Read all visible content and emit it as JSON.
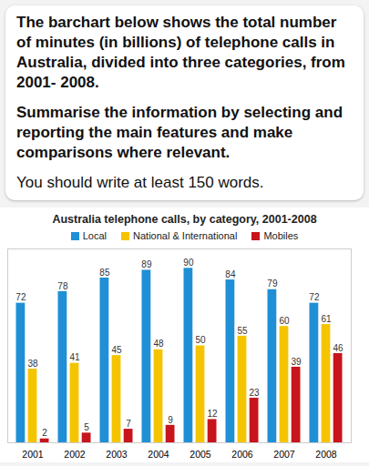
{
  "header": {
    "paragraphs": [
      "The barchart below shows the total number of minutes (in billions) of telephone calls in Australia, divided into three categories, from 2001- 2008.",
      "Summarise the information by selecting and reporting the main features and make comparisons where relevant.",
      "You should write at least 150 words."
    ]
  },
  "chart_data": {
    "type": "bar",
    "title": "Australia telephone calls, by category, 2001-2008",
    "categories": [
      "2001",
      "2002",
      "2003",
      "2004",
      "2005",
      "2006",
      "2007",
      "2008"
    ],
    "series": [
      {
        "name": "Local",
        "color": "#1f8fd6",
        "values": [
          72,
          78,
          85,
          89,
          90,
          84,
          79,
          72
        ]
      },
      {
        "name": "National & International",
        "color": "#f5c400",
        "values": [
          38,
          41,
          45,
          48,
          50,
          55,
          60,
          61
        ]
      },
      {
        "name": "Mobiles",
        "color": "#c8141c",
        "values": [
          2,
          5,
          7,
          9,
          12,
          23,
          39,
          46
        ]
      }
    ],
    "ylim": [
      0,
      100
    ],
    "data_labels": true,
    "tick_labels": "x",
    "legend": "top"
  }
}
